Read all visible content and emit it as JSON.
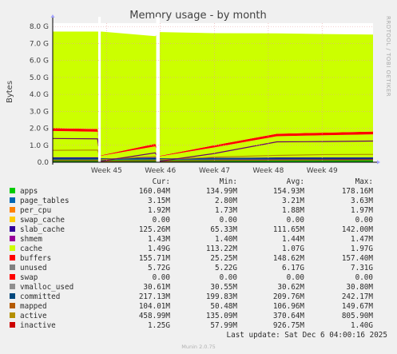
{
  "chart_data": {
    "type": "area",
    "title": "Memory usage - by month",
    "ylabel": "Bytes",
    "side_label": "RRDTOOL / TOBI OETIKER",
    "ylim": [
      0,
      8.2
    ],
    "yunit": "G",
    "yticks": [
      {
        "value": 0,
        "label": "0.0"
      },
      {
        "value": 1,
        "label": "1.0 G"
      },
      {
        "value": 2,
        "label": "2.0 G"
      },
      {
        "value": 3,
        "label": "3.0 G"
      },
      {
        "value": 4,
        "label": "4.0 G"
      },
      {
        "value": 5,
        "label": "5.0 G"
      },
      {
        "value": 6,
        "label": "6.0 G"
      },
      {
        "value": 7,
        "label": "7.0 G"
      },
      {
        "value": 8,
        "label": "8.0 G"
      }
    ],
    "xlim": [
      0,
      1
    ],
    "xticks": [
      {
        "value": 0.0,
        "label": ""
      },
      {
        "value": 0.168,
        "label": "Week 45"
      },
      {
        "value": 0.336,
        "label": "Week 46"
      },
      {
        "value": 0.505,
        "label": "Week 47"
      },
      {
        "value": 0.673,
        "label": "Week 48"
      },
      {
        "value": 0.841,
        "label": "Week 49"
      }
    ],
    "gaps": [
      [
        0.142,
        0.15
      ],
      [
        0.323,
        0.334
      ]
    ],
    "x": [
      0,
      0.14,
      0.15,
      0.32,
      0.335,
      0.5,
      0.7,
      0.85,
      1.0
    ],
    "series": [
      {
        "name": "apps",
        "color": "#00cc00",
        "values": [
          0.16,
          0.16,
          0.15,
          0.16,
          0.15,
          0.155,
          0.155,
          0.16,
          0.16
        ]
      },
      {
        "name": "page_tables",
        "color": "#0066b3",
        "values": [
          0.003,
          0.003,
          0.003,
          0.003,
          0.003,
          0.003,
          0.003,
          0.003,
          0.003
        ]
      },
      {
        "name": "per_cpu",
        "color": "#ff8000",
        "values": [
          0.002,
          0.002,
          0.002,
          0.002,
          0.002,
          0.002,
          0.002,
          0.002,
          0.002
        ]
      },
      {
        "name": "swap_cache",
        "color": "#ffcc00",
        "values": [
          0,
          0,
          0,
          0,
          0,
          0,
          0,
          0,
          0
        ]
      },
      {
        "name": "slab_cache",
        "color": "#330099",
        "values": [
          0.13,
          0.13,
          0.07,
          0.12,
          0.07,
          0.1,
          0.12,
          0.125,
          0.13
        ]
      },
      {
        "name": "shmem",
        "color": "#990099",
        "values": [
          0.0014,
          0.0014,
          0.0014,
          0.0014,
          0.0014,
          0.0014,
          0.0014,
          0.0014,
          0.0014
        ]
      },
      {
        "name": "cache",
        "color": "#ccff00",
        "values": [
          1.55,
          1.5,
          0.15,
          0.65,
          0.12,
          0.6,
          1.25,
          1.3,
          1.35
        ]
      },
      {
        "name": "buffers",
        "color": "#ff0000",
        "values": [
          0.16,
          0.16,
          0.03,
          0.15,
          0.03,
          0.12,
          0.15,
          0.155,
          0.16
        ]
      },
      {
        "name": "unused",
        "color": "#808080",
        "values": [
          5.7,
          5.75,
          7.3,
          6.35,
          7.3,
          6.63,
          5.92,
          5.81,
          5.72
        ]
      }
    ],
    "lines": [
      {
        "name": "vmalloc_used",
        "color": "#008f00",
        "values": [
          0.031,
          0.031,
          0.031,
          0.031,
          0.031,
          0.031,
          0.031,
          0.031,
          0.031
        ]
      },
      {
        "name": "committed",
        "color": "#00487d",
        "values": [
          0.22,
          0.21,
          0.2,
          0.21,
          0.2,
          0.21,
          0.22,
          0.23,
          0.24
        ]
      },
      {
        "name": "mapped",
        "color": "#b35a00",
        "values": [
          0.1,
          0.1,
          0.06,
          0.1,
          0.06,
          0.1,
          0.12,
          0.13,
          0.14
        ]
      },
      {
        "name": "active",
        "color": "#b38f00",
        "values": [
          0.7,
          0.72,
          0.15,
          0.35,
          0.15,
          0.3,
          0.4,
          0.45,
          0.46
        ]
      },
      {
        "name": "inactive",
        "color": "#6b006b",
        "values": [
          1.4,
          1.38,
          0.06,
          0.55,
          0.06,
          0.5,
          1.2,
          1.22,
          1.25
        ]
      }
    ],
    "legend": {
      "headers": [
        "Cur:",
        "Min:",
        "Avg:",
        "Max:"
      ],
      "rows": [
        {
          "name": "apps",
          "color": "#00cc00",
          "cur": "160.04M",
          "min": "134.99M",
          "avg": "154.93M",
          "max": "178.16M"
        },
        {
          "name": "page_tables",
          "color": "#0066b3",
          "cur": "3.15M",
          "min": "2.80M",
          "avg": "3.21M",
          "max": "3.63M"
        },
        {
          "name": "per_cpu",
          "color": "#ff8000",
          "cur": "1.92M",
          "min": "1.73M",
          "avg": "1.88M",
          "max": "1.97M"
        },
        {
          "name": "swap_cache",
          "color": "#ffcc00",
          "cur": "0.00",
          "min": "0.00",
          "avg": "0.00",
          "max": "0.00"
        },
        {
          "name": "slab_cache",
          "color": "#330099",
          "cur": "125.26M",
          "min": "65.33M",
          "avg": "111.65M",
          "max": "142.00M"
        },
        {
          "name": "shmem",
          "color": "#990099",
          "cur": "1.43M",
          "min": "1.40M",
          "avg": "1.44M",
          "max": "1.47M"
        },
        {
          "name": "cache",
          "color": "#ccff00",
          "cur": "1.49G",
          "min": "113.22M",
          "avg": "1.07G",
          "max": "1.97G"
        },
        {
          "name": "buffers",
          "color": "#ff0000",
          "cur": "155.71M",
          "min": "25.25M",
          "avg": "148.62M",
          "max": "157.40M"
        },
        {
          "name": "unused",
          "color": "#808080",
          "cur": "5.72G",
          "min": "5.22G",
          "avg": "6.17G",
          "max": "7.31G"
        },
        {
          "name": "swap",
          "color": "#ff0000",
          "cur": "0.00",
          "min": "0.00",
          "avg": "0.00",
          "max": "0.00"
        },
        {
          "name": "vmalloc_used",
          "color": "#8f8f8f",
          "cur": "30.61M",
          "min": "30.55M",
          "avg": "30.62M",
          "max": "30.80M"
        },
        {
          "name": "committed",
          "color": "#00487d",
          "cur": "217.13M",
          "min": "199.83M",
          "avg": "209.76M",
          "max": "242.17M"
        },
        {
          "name": "mapped",
          "color": "#b35a00",
          "cur": "104.01M",
          "min": "50.48M",
          "avg": "106.96M",
          "max": "149.67M"
        },
        {
          "name": "active",
          "color": "#b38f00",
          "cur": "458.99M",
          "min": "135.09M",
          "avg": "370.64M",
          "max": "805.90M"
        },
        {
          "name": "inactive",
          "color": "#cc0000",
          "cur": "1.25G",
          "min": "57.99M",
          "avg": "926.75M",
          "max": "1.40G"
        }
      ]
    },
    "last_update": "Last update:  Sat Dec  6 04:00:16 2025",
    "footer": "Munin 2.0.75"
  }
}
